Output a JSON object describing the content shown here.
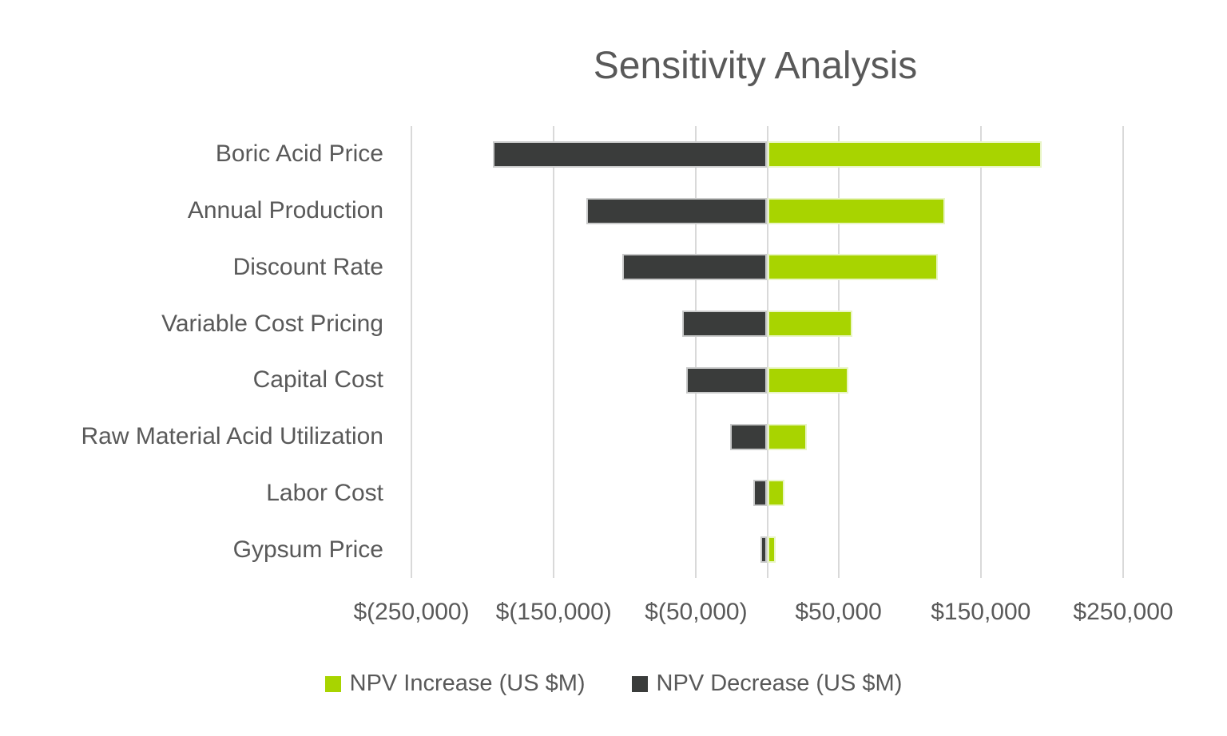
{
  "chart_data": {
    "type": "bar",
    "subtype": "tornado",
    "orientation": "horizontal",
    "title": "Sensitivity Analysis",
    "categories": [
      "Boric Acid Price",
      "Annual Production",
      "Discount Rate",
      "Variable Cost Pricing",
      "Capital Cost",
      "Raw Material Acid Utilization",
      "Labor Cost",
      "Gypsum Price"
    ],
    "series": [
      {
        "name": "NPV Increase (US $M)",
        "color": "#A8D400",
        "values": [
          193000,
          125000,
          120000,
          60000,
          57000,
          28000,
          12000,
          6000
        ]
      },
      {
        "name": "NPV Decrease (US $M)",
        "color": "#3A3C3B",
        "values": [
          -193000,
          -127000,
          -102000,
          -60000,
          -57000,
          -26000,
          -10000,
          -5000
        ]
      }
    ],
    "xlim": [
      -250000,
      250000
    ],
    "x_ticks": [
      {
        "value": -250000,
        "label": "$(250,000)"
      },
      {
        "value": -150000,
        "label": "$(150,000)"
      },
      {
        "value": -50000,
        "label": "$(50,000)"
      },
      {
        "value": 50000,
        "label": "$50,000"
      },
      {
        "value": 150000,
        "label": "$150,000"
      },
      {
        "value": 250000,
        "label": "$250,000"
      }
    ],
    "grid": "vertical",
    "zero_axis_line": true,
    "legend_position": "bottom"
  },
  "colors": {
    "increase": "#A8D400",
    "decrease": "#3A3C3B",
    "gridline": "#D9D9D9",
    "text": "#595959"
  }
}
